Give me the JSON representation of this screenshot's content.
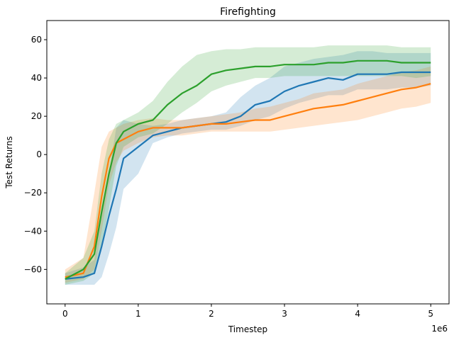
{
  "chart_data": {
    "type": "line",
    "title": "Firefighting",
    "xlabel": "Timestep",
    "ylabel": "Test Returns",
    "x_offset_label": "1e6",
    "xlim": [
      -0.25,
      5.25
    ],
    "ylim": [
      -78,
      70
    ],
    "xticks": [
      0,
      1,
      2,
      3,
      4,
      5
    ],
    "yticks": [
      -60,
      -40,
      -20,
      0,
      20,
      40,
      60
    ],
    "grid": false,
    "series": [
      {
        "color": "#1f77b4",
        "x": [
          0,
          0.25,
          0.4,
          0.5,
          0.6,
          0.7,
          0.8,
          1.0,
          1.2,
          1.4,
          1.6,
          1.8,
          2.0,
          2.2,
          2.4,
          2.6,
          2.8,
          3.0,
          3.2,
          3.4,
          3.6,
          3.8,
          4.0,
          4.2,
          4.4,
          4.6,
          4.8,
          5.0
        ],
        "y": [
          -65,
          -64,
          -62,
          -48,
          -32,
          -18,
          -2,
          4,
          10,
          12,
          14,
          15,
          16,
          17,
          20,
          26,
          28,
          33,
          36,
          38,
          40,
          39,
          42,
          42,
          42,
          43,
          43,
          43
        ],
        "lower": [
          -68,
          -68,
          -68,
          -64,
          -52,
          -38,
          -18,
          -10,
          6,
          9,
          11,
          12,
          13,
          13,
          15,
          18,
          20,
          24,
          27,
          29,
          31,
          31,
          34,
          34,
          34,
          35,
          35,
          36
        ],
        "upper": [
          -62,
          -59,
          -55,
          -32,
          -10,
          14,
          18,
          16,
          15,
          16,
          18,
          19,
          20,
          22,
          30,
          36,
          40,
          46,
          48,
          50,
          51,
          52,
          54,
          54,
          53,
          53,
          53,
          53
        ]
      },
      {
        "color": "#ff7f0e",
        "x": [
          0,
          0.25,
          0.4,
          0.5,
          0.6,
          0.7,
          0.8,
          1.0,
          1.2,
          1.4,
          1.6,
          1.8,
          2.0,
          2.2,
          2.4,
          2.6,
          2.8,
          3.0,
          3.2,
          3.4,
          3.6,
          3.8,
          4.0,
          4.2,
          4.4,
          4.6,
          4.8,
          5.0
        ],
        "y": [
          -64,
          -62,
          -48,
          -22,
          -2,
          6,
          8,
          12,
          14,
          14,
          14,
          15,
          16,
          16,
          17,
          18,
          18,
          20,
          22,
          24,
          25,
          26,
          28,
          30,
          32,
          34,
          35,
          37
        ],
        "lower": [
          -67,
          -65,
          -60,
          -40,
          -16,
          -4,
          2,
          6,
          9,
          10,
          10,
          11,
          12,
          12,
          12,
          12,
          12,
          13,
          14,
          15,
          16,
          17,
          18,
          20,
          22,
          24,
          25,
          27
        ],
        "upper": [
          -60,
          -54,
          -20,
          4,
          12,
          14,
          16,
          18,
          19,
          18,
          18,
          19,
          20,
          21,
          22,
          24,
          25,
          27,
          29,
          32,
          33,
          34,
          37,
          39,
          41,
          43,
          44,
          46
        ]
      },
      {
        "color": "#2ca02c",
        "x": [
          0,
          0.25,
          0.4,
          0.5,
          0.6,
          0.7,
          0.8,
          1.0,
          1.2,
          1.4,
          1.6,
          1.8,
          2.0,
          2.2,
          2.4,
          2.6,
          2.8,
          3.0,
          3.2,
          3.4,
          3.6,
          3.8,
          4.0,
          4.2,
          4.4,
          4.6,
          4.8,
          5.0
        ],
        "y": [
          -65,
          -60,
          -52,
          -30,
          -10,
          6,
          12,
          16,
          18,
          26,
          32,
          36,
          42,
          44,
          45,
          46,
          46,
          47,
          47,
          47,
          48,
          48,
          49,
          49,
          49,
          48,
          48,
          48
        ],
        "lower": [
          -68,
          -66,
          -62,
          -48,
          -28,
          -6,
          4,
          9,
          11,
          16,
          22,
          27,
          33,
          36,
          38,
          40,
          40,
          41,
          41,
          41,
          41,
          41,
          41,
          41,
          41,
          41,
          40,
          41
        ],
        "upper": [
          -62,
          -54,
          -40,
          -10,
          8,
          16,
          18,
          22,
          28,
          38,
          46,
          52,
          54,
          55,
          55,
          56,
          56,
          56,
          56,
          56,
          57,
          57,
          57,
          57,
          57,
          56,
          56,
          56
        ]
      }
    ]
  }
}
